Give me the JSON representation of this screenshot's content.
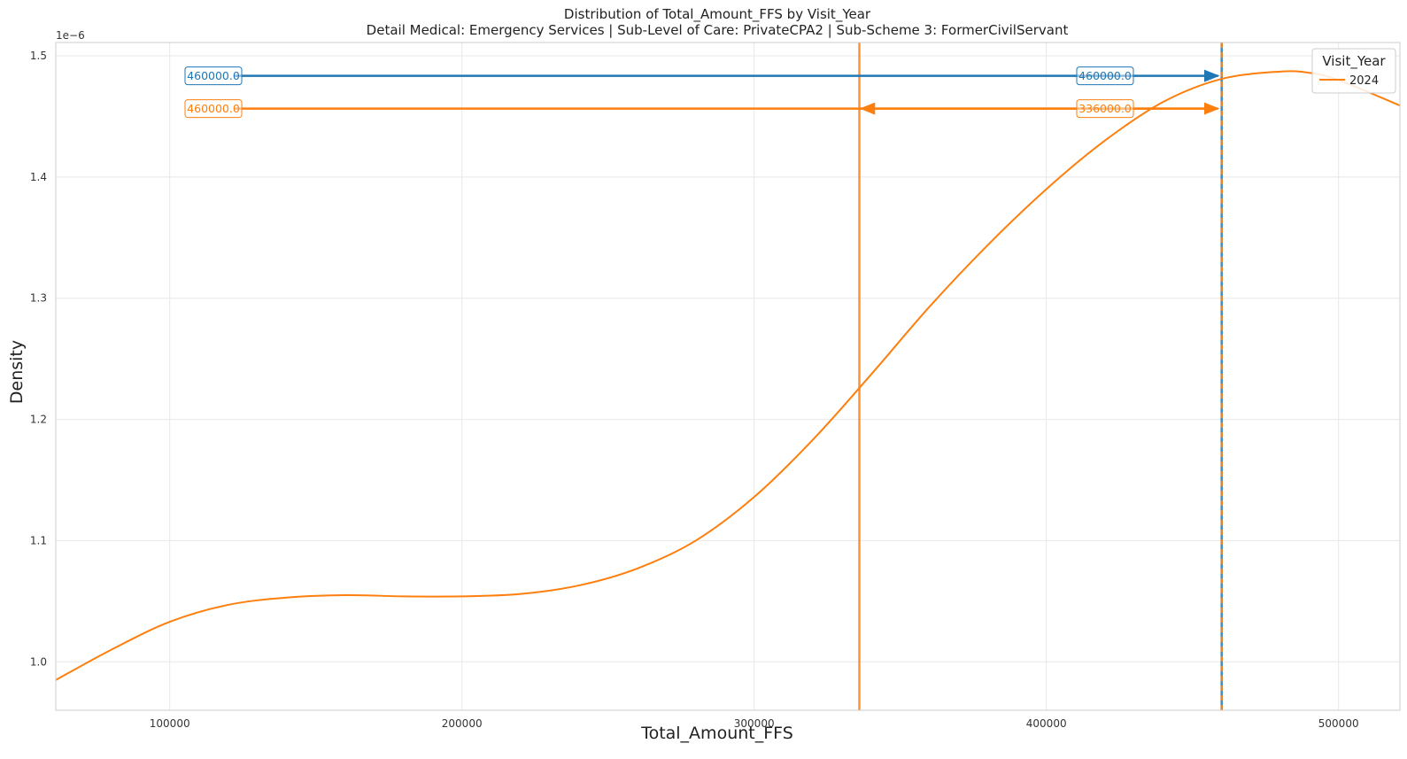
{
  "chart_data": {
    "type": "line",
    "title": "Distribution of Total_Amount_FFS by Visit_Year",
    "subtitle": "Detail Medical: Emergency Services | Sub-Level of Care: PrivateCPA2 | Sub-Scheme 3: FormerCivilServant",
    "xlabel": "Total_Amount_FFS",
    "ylabel": "Density",
    "y_scale_label": "1e−6",
    "xlim": [
      61000,
      521000
    ],
    "ylim": [
      0.96,
      1.511
    ],
    "x_ticks": [
      100000,
      200000,
      300000,
      400000,
      500000
    ],
    "x_tick_labels": [
      "100000",
      "200000",
      "300000",
      "400000",
      "500000"
    ],
    "y_ticks": [
      1.0,
      1.1,
      1.2,
      1.3,
      1.4,
      1.5
    ],
    "y_tick_labels": [
      "1.0",
      "1.1",
      "1.2",
      "1.3",
      "1.4",
      "1.5"
    ],
    "grid": true,
    "legend": {
      "title": "Visit_Year",
      "placement": "top-right",
      "entries": [
        "2024"
      ]
    },
    "series": [
      {
        "name": "2024",
        "color": "#ff7f0e",
        "x": [
          61000,
          80000,
          100000,
          120000,
          140000,
          160000,
          180000,
          200000,
          220000,
          240000,
          260000,
          280000,
          300000,
          320000,
          340000,
          360000,
          380000,
          400000,
          420000,
          440000,
          460000,
          480000,
          490000,
          500000,
          521000
        ],
        "y": [
          0.985,
          1.01,
          1.033,
          1.047,
          1.053,
          1.055,
          1.054,
          1.054,
          1.056,
          1.063,
          1.077,
          1.1,
          1.136,
          1.183,
          1.237,
          1.293,
          1.344,
          1.39,
          1.43,
          1.462,
          1.481,
          1.487,
          1.486,
          1.48,
          1.459
        ]
      }
    ],
    "vertical_lines": [
      {
        "x": 460000,
        "color": "#1f77b4",
        "style": "solid"
      },
      {
        "x": 336000,
        "color": "#ff7f0e",
        "style": "solid"
      },
      {
        "x": 460000,
        "color": "#ff7f0e",
        "style": "dashed"
      }
    ],
    "annotations": [
      {
        "label_left": "460000.0",
        "label_right": "460000.0",
        "color": "#1f77b4",
        "y": 1.4835,
        "x_from": 122000,
        "x_to": 460000,
        "arrow": "right"
      },
      {
        "label_left": "460000.0",
        "label_right": "336000.0",
        "color": "#ff7f0e",
        "y": 1.4565,
        "x_from": 122000,
        "x_to": 460000,
        "arrow": "both",
        "arrow_left_at": 336000
      }
    ]
  }
}
